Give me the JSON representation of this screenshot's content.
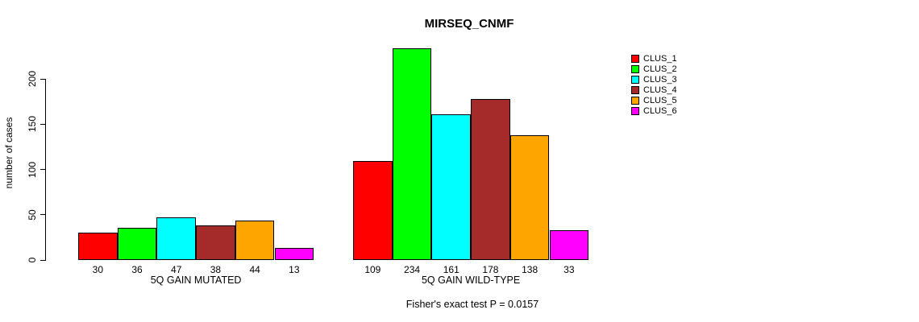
{
  "chart_data": {
    "type": "bar",
    "title": "MIRSEQ_CNMF",
    "xlabel": "",
    "ylabel": "number of cases",
    "categories": [
      "5Q GAIN MUTATED",
      "5Q GAIN WILD-TYPE"
    ],
    "series": [
      {
        "name": "CLUS_1",
        "color": "#FF0000",
        "values": [
          30,
          109
        ]
      },
      {
        "name": "CLUS_2",
        "color": "#00FF00",
        "values": [
          36,
          234
        ]
      },
      {
        "name": "CLUS_3",
        "color": "#00FFFF",
        "values": [
          47,
          161
        ]
      },
      {
        "name": "CLUS_4",
        "color": "#A52A2A",
        "values": [
          38,
          178
        ]
      },
      {
        "name": "CLUS_5",
        "color": "#FFA500",
        "values": [
          44,
          138
        ]
      },
      {
        "name": "CLUS_6",
        "color": "#FF00FF",
        "values": [
          13,
          33
        ]
      }
    ],
    "yticks": [
      0,
      50,
      100,
      150,
      200
    ],
    "ylim": [
      0,
      236
    ],
    "grid": false,
    "legend_position": "right",
    "bar_value_labels": true,
    "annotation": "Fisher's exact test P = 0.0157"
  }
}
